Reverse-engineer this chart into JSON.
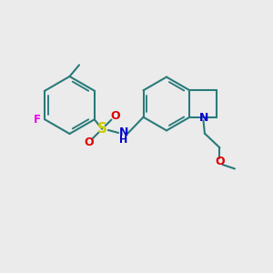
{
  "bg_color": "#ebebeb",
  "bond_color": "#2a7a7a",
  "F_color": "#ee00ee",
  "S_color": "#cccc00",
  "O_color": "#dd0000",
  "N_color": "#0000cc",
  "lw": 1.5,
  "dbl_sep": 0.11,
  "xlim": [
    0,
    10
  ],
  "ylim": [
    0,
    10
  ]
}
